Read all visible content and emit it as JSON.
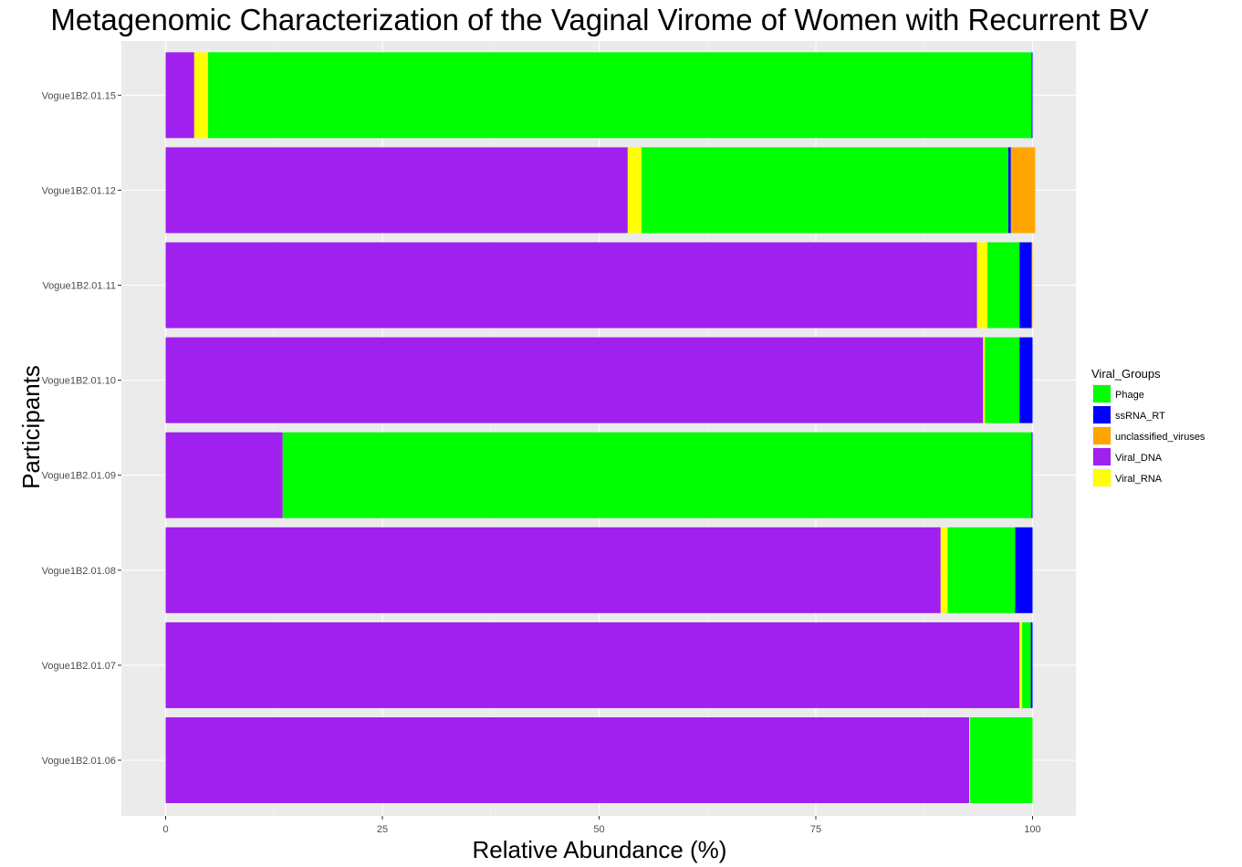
{
  "chart_data": {
    "type": "bar",
    "orientation": "horizontal",
    "stacked": true,
    "title": "Metagenomic Characterization of the Vaginal Virome of Women with Recurrent BV",
    "xlabel": "Relative Abundance (%)",
    "ylabel": "Participants",
    "xlim": [
      0,
      100
    ],
    "x_ticks": [
      "0",
      "25",
      "50",
      "75",
      "100"
    ],
    "grid": true,
    "legend_position": "right",
    "legend_title": "Viral_Groups",
    "categories": [
      "Vogue1B2.01.06",
      "Vogue1B2.01.07",
      "Vogue1B2.01.08",
      "Vogue1B2.01.09",
      "Vogue1B2.01.10",
      "Vogue1B2.01.11",
      "Vogue1B2.01.12",
      "Vogue1B2.01.15"
    ],
    "stack_order": [
      "Viral_DNA",
      "Viral_RNA",
      "Phage",
      "ssRNA_RT",
      "unclassified_viruses"
    ],
    "series": [
      {
        "name": "Phage",
        "color": "#00ff00",
        "values": [
          7.2,
          1.0,
          7.8,
          86.4,
          4.0,
          3.7,
          42.3,
          95.0
        ]
      },
      {
        "name": "ssRNA_RT",
        "color": "#0000ff",
        "values": [
          0.0,
          0.2,
          2.0,
          0.1,
          1.5,
          1.4,
          0.3,
          0.1
        ]
      },
      {
        "name": "unclassified_viruses",
        "color": "#ffa500",
        "values": [
          0.0,
          0.0,
          0.0,
          0.0,
          0.0,
          0.1,
          2.8,
          0.0
        ]
      },
      {
        "name": "Viral_DNA",
        "color": "#a020f0",
        "values": [
          92.7,
          98.5,
          89.4,
          13.5,
          94.3,
          93.6,
          53.3,
          3.3
        ]
      },
      {
        "name": "Viral_RNA",
        "color": "#ffff00",
        "values": [
          0.1,
          0.3,
          0.8,
          0.0,
          0.2,
          1.2,
          1.6,
          1.6
        ]
      }
    ]
  }
}
